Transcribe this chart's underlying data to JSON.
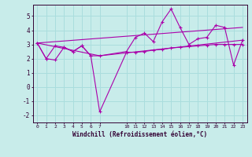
{
  "xlabel": "Windchill (Refroidissement éolien,°C)",
  "bg_color": "#c8ecea",
  "line_color": "#aa00aa",
  "grid_color": "#aadddd",
  "x_ticks": [
    0,
    1,
    2,
    3,
    4,
    5,
    6,
    7,
    10,
    11,
    12,
    13,
    14,
    15,
    16,
    17,
    18,
    19,
    20,
    21,
    22,
    23
  ],
  "ylim": [
    -2.5,
    5.8
  ],
  "yticks": [
    -2,
    -1,
    0,
    1,
    2,
    3,
    4,
    5
  ],
  "series1_x": [
    0,
    1,
    2,
    3,
    4,
    5,
    6,
    7,
    10,
    11,
    12,
    13,
    14,
    15,
    16,
    17,
    18,
    19,
    20,
    21,
    22,
    23
  ],
  "series1_y": [
    3.1,
    2.0,
    1.9,
    2.8,
    2.5,
    2.9,
    2.2,
    2.2,
    2.5,
    3.5,
    3.8,
    3.2,
    4.6,
    5.5,
    4.2,
    3.0,
    3.4,
    3.5,
    4.35,
    4.2,
    1.55,
    3.3
  ],
  "series2_x": [
    0,
    1,
    2,
    3,
    4,
    5,
    6,
    7,
    10,
    11,
    12,
    13,
    14,
    15,
    16,
    17,
    18,
    19,
    20,
    21,
    22,
    23
  ],
  "series2_y": [
    3.1,
    2.0,
    2.9,
    2.8,
    2.5,
    2.9,
    2.2,
    -1.75,
    2.45,
    2.45,
    2.5,
    2.6,
    2.65,
    2.75,
    2.8,
    2.85,
    2.9,
    2.95,
    3.0,
    3.0,
    3.0,
    3.0
  ],
  "series3_x": [
    0,
    7,
    23
  ],
  "series3_y": [
    3.1,
    2.2,
    3.3
  ],
  "series4_x": [
    0,
    23
  ],
  "series4_y": [
    3.1,
    4.2
  ]
}
